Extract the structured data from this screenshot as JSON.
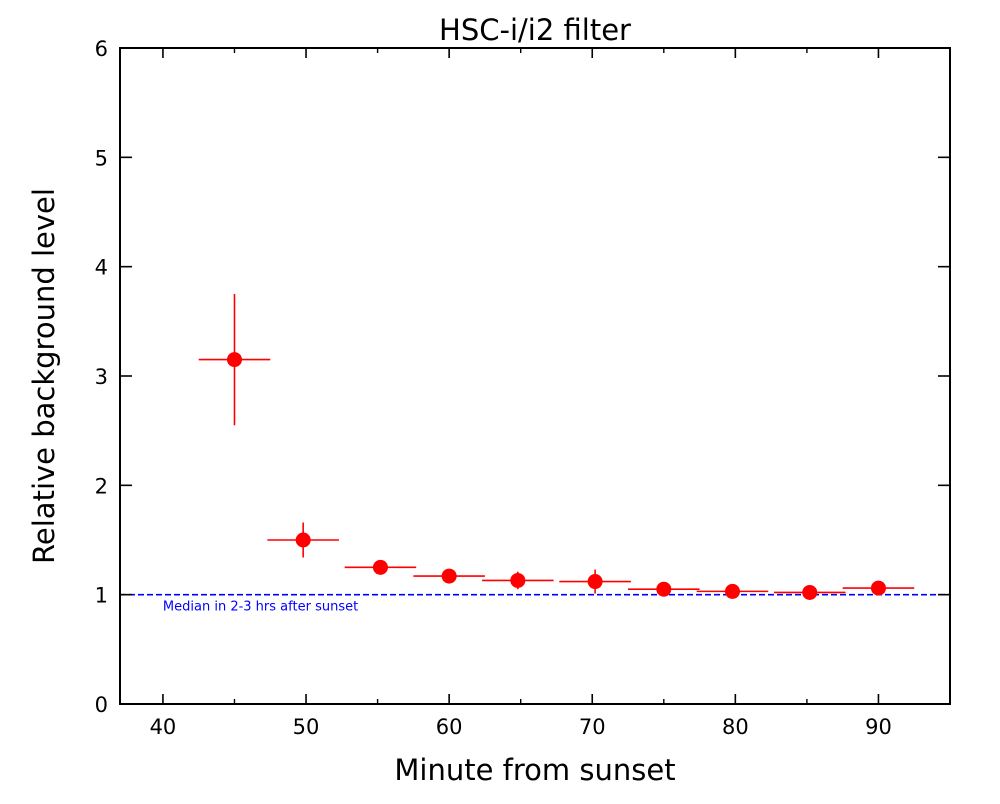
{
  "chart_data": {
    "type": "scatter",
    "title": "HSC-i/i2 filter",
    "xlabel": "Minute from sunset",
    "ylabel": "Relative background level",
    "xlim": [
      37,
      95
    ],
    "ylim": [
      0,
      6
    ],
    "xticks": [
      40,
      50,
      60,
      70,
      80,
      90
    ],
    "xtick_labels": [
      "40",
      "50",
      "60",
      "70",
      "80",
      "90"
    ],
    "yticks": [
      0,
      1,
      2,
      3,
      4,
      5,
      6
    ],
    "ytick_labels": [
      "0",
      "1",
      "2",
      "3",
      "4",
      "5",
      "6"
    ],
    "grid": false,
    "series": [
      {
        "marker_color": "#ff0000",
        "points": [
          {
            "x": 45.0,
            "y": 3.15,
            "x_err": 2.5,
            "y_err": 0.6
          },
          {
            "x": 49.8,
            "y": 1.5,
            "x_err": 2.5,
            "y_err": 0.16
          },
          {
            "x": 55.2,
            "y": 1.25,
            "x_err": 2.5,
            "y_err": 0.03
          },
          {
            "x": 60.0,
            "y": 1.17,
            "x_err": 2.5,
            "y_err": 0.02
          },
          {
            "x": 64.8,
            "y": 1.13,
            "x_err": 2.5,
            "y_err": 0.08
          },
          {
            "x": 70.2,
            "y": 1.12,
            "x_err": 2.5,
            "y_err": 0.11
          },
          {
            "x": 75.0,
            "y": 1.05,
            "x_err": 2.5,
            "y_err": 0.03
          },
          {
            "x": 79.8,
            "y": 1.03,
            "x_err": 2.5,
            "y_err": 0.02
          },
          {
            "x": 85.2,
            "y": 1.02,
            "x_err": 2.5,
            "y_err": 0.02
          },
          {
            "x": 90.0,
            "y": 1.06,
            "x_err": 2.5,
            "y_err": 0.02
          }
        ]
      }
    ],
    "reference_line": {
      "y": 1.0,
      "style": "dashed",
      "color": "#0000ff",
      "label": "Median in 2-3 hrs after sunset"
    }
  }
}
